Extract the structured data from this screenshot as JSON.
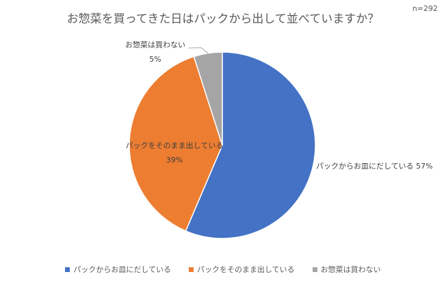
{
  "chart_data": {
    "type": "pie",
    "title": "お惣菜を買ってきた日はパックから出して並べていますか？",
    "sample_size": "n=292",
    "slices": [
      {
        "label": "パックからお皿にだしている",
        "value": 57,
        "value_text": "57%",
        "color": "#4472c4"
      },
      {
        "label": "パックをそのまま出している",
        "value": 39,
        "value_text": "39%",
        "color": "#ed7d31"
      },
      {
        "label": "お惣菜は買わない",
        "value": 5,
        "value_text": "5%",
        "color": "#a5a5a5"
      }
    ],
    "legend_position": "bottom"
  }
}
